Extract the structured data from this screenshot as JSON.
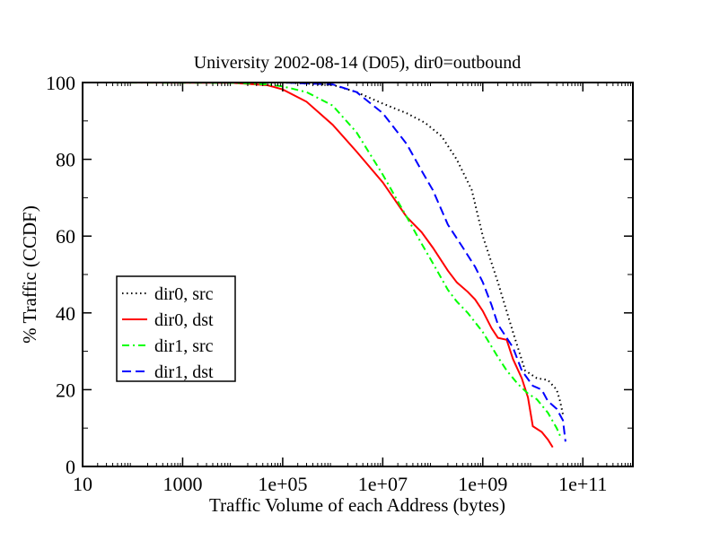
{
  "chart_data": {
    "type": "line",
    "title": "University 2002-08-14 (D05), dir0=outbound",
    "xlabel": "Traffic Volume of each Address (bytes)",
    "ylabel": "% Traffic (CCDF)",
    "x_scale": "log",
    "xlim": [
      10,
      1000000000000.0
    ],
    "ylim": [
      0,
      100
    ],
    "x_ticks": [
      {
        "value": 10,
        "label": "10"
      },
      {
        "value": 1000,
        "label": "1000"
      },
      {
        "value": 100000,
        "label": "1e+05"
      },
      {
        "value": 10000000,
        "label": "1e+07"
      },
      {
        "value": 1000000000,
        "label": "1e+09"
      },
      {
        "value": 100000000000,
        "label": "1e+11"
      }
    ],
    "y_ticks": [
      {
        "value": 0,
        "label": "0"
      },
      {
        "value": 20,
        "label": "20"
      },
      {
        "value": 40,
        "label": "40"
      },
      {
        "value": 60,
        "label": "60"
      },
      {
        "value": 80,
        "label": "80"
      },
      {
        "value": 100,
        "label": "100"
      }
    ],
    "grid": false,
    "legend_position": "left-middle",
    "series": [
      {
        "name": "dir0, src",
        "color": "#000000",
        "dash": "dotted",
        "points": [
          [
            20,
            100
          ],
          [
            100000.0,
            100
          ],
          [
            1000000.0,
            99.4
          ],
          [
            3000000.0,
            97.5
          ],
          [
            10000000.0,
            94.5
          ],
          [
            30000000.0,
            92
          ],
          [
            70000000.0,
            89.5
          ],
          [
            150000000.0,
            86
          ],
          [
            300000000.0,
            80
          ],
          [
            600000000.0,
            72
          ],
          [
            1000000000.0,
            60
          ],
          [
            2000000000.0,
            48
          ],
          [
            4000000000.0,
            35
          ],
          [
            7000000000.0,
            25
          ],
          [
            12000000000.0,
            23
          ],
          [
            20000000000.0,
            22.5
          ],
          [
            30000000000.0,
            20
          ],
          [
            35000000000.0,
            17
          ],
          [
            40000000000.0,
            13.5
          ]
        ]
      },
      {
        "name": "dir0, dst",
        "color": "#ff0000",
        "dash": "solid",
        "points": [
          [
            20,
            100
          ],
          [
            10000.0,
            99.9
          ],
          [
            50000.0,
            99.3
          ],
          [
            100000.0,
            98.2
          ],
          [
            300000.0,
            95
          ],
          [
            1000000.0,
            89
          ],
          [
            3000000.0,
            82
          ],
          [
            10000000.0,
            74
          ],
          [
            30000000.0,
            65
          ],
          [
            60000000.0,
            61
          ],
          [
            100000000.0,
            57
          ],
          [
            200000000.0,
            51
          ],
          [
            300000000.0,
            48
          ],
          [
            500000000.0,
            45.5
          ],
          [
            700000000.0,
            43.5
          ],
          [
            1000000000.0,
            40.5
          ],
          [
            1500000000.0,
            36
          ],
          [
            2000000000.0,
            33.5
          ],
          [
            3000000000.0,
            33
          ],
          [
            4000000000.0,
            28
          ],
          [
            6000000000.0,
            23
          ],
          [
            8000000000.0,
            18
          ],
          [
            10000000000.0,
            10.5
          ],
          [
            15000000000.0,
            9
          ],
          [
            20000000000.0,
            7
          ],
          [
            25000000000.0,
            5
          ]
        ]
      },
      {
        "name": "dir1, src",
        "color": "#00ff00",
        "dash": "dashdot",
        "points": [
          [
            20,
            100
          ],
          [
            10000.0,
            99.9
          ],
          [
            50000.0,
            99.5
          ],
          [
            100000.0,
            99
          ],
          [
            300000.0,
            97.5
          ],
          [
            1000000.0,
            94
          ],
          [
            3000000.0,
            87
          ],
          [
            10000000.0,
            76
          ],
          [
            30000000.0,
            65
          ],
          [
            60000000.0,
            58
          ],
          [
            100000000.0,
            53
          ],
          [
            200000000.0,
            46
          ],
          [
            300000000.0,
            43
          ],
          [
            500000000.0,
            40
          ],
          [
            1000000000.0,
            35
          ],
          [
            2000000000.0,
            28.5
          ],
          [
            3000000000.0,
            25
          ],
          [
            5000000000.0,
            21.5
          ],
          [
            8000000000.0,
            19
          ],
          [
            12000000000.0,
            17.5
          ],
          [
            20000000000.0,
            14
          ],
          [
            30000000000.0,
            10
          ],
          [
            35000000000.0,
            8
          ]
        ]
      },
      {
        "name": "dir1, dst",
        "color": "#0000ff",
        "dash": "dashed",
        "points": [
          [
            20,
            100
          ],
          [
            100000.0,
            100
          ],
          [
            1000000.0,
            99.5
          ],
          [
            3000000.0,
            97.5
          ],
          [
            10000000.0,
            92
          ],
          [
            30000000.0,
            84
          ],
          [
            60000000.0,
            77
          ],
          [
            100000000.0,
            72
          ],
          [
            200000000.0,
            63
          ],
          [
            400000000.0,
            57
          ],
          [
            700000000.0,
            52
          ],
          [
            1000000000.0,
            48
          ],
          [
            1500000000.0,
            42
          ],
          [
            2000000000.0,
            37
          ],
          [
            3000000000.0,
            33.5
          ],
          [
            4000000000.0,
            31
          ],
          [
            6000000000.0,
            25
          ],
          [
            10000000000.0,
            21
          ],
          [
            15000000000.0,
            20
          ],
          [
            20000000000.0,
            17
          ],
          [
            30000000000.0,
            15
          ],
          [
            40000000000.0,
            12
          ],
          [
            45000000000.0,
            6.5
          ]
        ]
      }
    ]
  }
}
